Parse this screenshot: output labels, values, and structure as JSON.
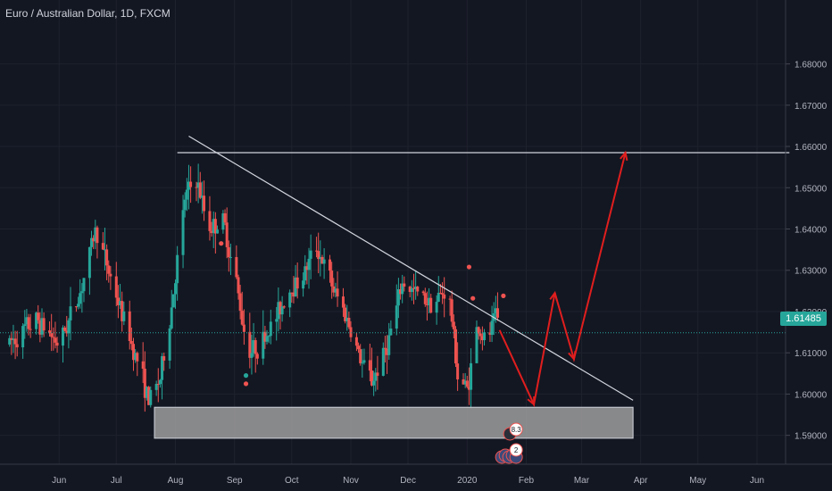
{
  "chart_title": "Euro / Australian Dollar, 1D, FXCM",
  "current_price": "1.61485",
  "colors": {
    "background": "#131722",
    "grid": "#1e222d",
    "text": "#b2b5be",
    "up": "#26a69a",
    "down": "#ef5350",
    "projection": "#e01e1e",
    "trendline": "#d1d4dc",
    "zone": "#9e9e9e"
  },
  "chart_data": {
    "type": "candlestick",
    "x_ticks": [
      "Jun",
      "Jul",
      "Aug",
      "Sep",
      "Oct",
      "Nov",
      "Dec",
      "2020",
      "Feb",
      "Mar",
      "Apr",
      "May",
      "Jun"
    ],
    "y_ticks": [
      "1.68000",
      "1.67000",
      "1.66000",
      "1.65000",
      "1.64000",
      "1.63000",
      "1.62000",
      "1.61000",
      "1.60000",
      "1.59000"
    ],
    "ylim": [
      1.583,
      1.689
    ],
    "grid": true,
    "current_price": 1.61485,
    "resistance_level": 1.6585,
    "descending_trendline": [
      [
        "2019-08-08",
        1.6625
      ],
      [
        "2020-03-28",
        1.5985
      ]
    ],
    "support_zone": [
      1.5893,
      1.5968
    ],
    "projection_path": [
      [
        "2020-01-18",
        1.6155
      ],
      [
        "2020-02-05",
        1.5975
      ],
      [
        "2020-02-16",
        1.6245
      ],
      [
        "2020-02-26",
        1.6085
      ],
      [
        "2020-03-24",
        1.6585
      ]
    ],
    "price_path": [
      [
        "2019-05-05",
        1.612
      ],
      [
        "2019-05-20",
        1.618
      ],
      [
        "2019-06-01",
        1.612
      ],
      [
        "2019-06-12",
        1.625
      ],
      [
        "2019-06-20",
        1.64
      ],
      [
        "2019-06-28",
        1.628
      ],
      [
        "2019-07-06",
        1.616
      ],
      [
        "2019-07-12",
        1.608
      ],
      [
        "2019-07-18",
        1.598
      ],
      [
        "2019-07-24",
        1.604
      ],
      [
        "2019-07-30",
        1.622
      ],
      [
        "2019-08-06",
        1.648
      ],
      [
        "2019-08-12",
        1.652
      ],
      [
        "2019-08-18",
        1.64
      ],
      [
        "2019-08-26",
        1.642
      ],
      [
        "2019-09-02",
        1.626
      ],
      [
        "2019-09-08",
        1.61
      ],
      [
        "2019-09-14",
        1.612
      ],
      [
        "2019-09-22",
        1.618
      ],
      [
        "2019-09-30",
        1.626
      ],
      [
        "2019-10-06",
        1.628
      ],
      [
        "2019-10-14",
        1.636
      ],
      [
        "2019-10-22",
        1.626
      ],
      [
        "2019-10-30",
        1.618
      ],
      [
        "2019-11-06",
        1.608
      ],
      [
        "2019-11-12",
        1.603
      ],
      [
        "2019-11-20",
        1.612
      ],
      [
        "2019-11-28",
        1.627
      ],
      [
        "2019-12-06",
        1.624
      ],
      [
        "2019-12-14",
        1.622
      ],
      [
        "2019-12-22",
        1.626
      ],
      [
        "2019-12-27",
        1.604
      ],
      [
        "2020-01-01",
        1.601
      ],
      [
        "2020-01-06",
        1.617
      ],
      [
        "2020-01-11",
        1.612
      ],
      [
        "2020-01-16",
        1.619
      ],
      [
        "2020-01-18",
        1.6155
      ]
    ],
    "markers": [
      {
        "date": "2019-08-25",
        "price": 1.6365,
        "color": "#ef5350"
      },
      {
        "date": "2019-09-07",
        "price": 1.6045,
        "color": "#26a69a"
      },
      {
        "date": "2019-09-07",
        "price": 1.6025,
        "color": "#ef5350"
      },
      {
        "date": "2020-01-02",
        "price": 1.6308,
        "color": "#ef5350"
      },
      {
        "date": "2020-01-04",
        "price": 1.6232,
        "color": "#ef5350"
      },
      {
        "date": "2020-01-20",
        "price": 1.6238,
        "color": "#ef5350"
      }
    ],
    "event_badges": [
      "8.3",
      "2"
    ]
  }
}
